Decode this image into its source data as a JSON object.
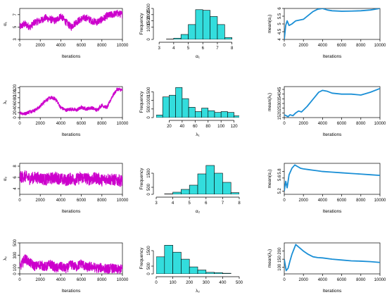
{
  "colors": {
    "trace": "#cc00cc",
    "hist_fill": "#33dddd",
    "hist_edge": "#000000",
    "mean_line": "#1a8fd6"
  },
  "chart_data": [
    {
      "panel": "trace-alpha1",
      "type": "line",
      "xlabel": "Iterations",
      "ylabel": "α₁",
      "xlim": [
        0,
        10000
      ],
      "ylim": [
        3,
        8
      ],
      "xticks": [
        0,
        2000,
        4000,
        6000,
        8000,
        10000
      ],
      "yticks": [
        3,
        5,
        7
      ],
      "x": [
        0,
        500,
        1000,
        1500,
        2000,
        2500,
        3000,
        3500,
        4000,
        4500,
        5000,
        5500,
        6000,
        6500,
        7000,
        7500,
        8000,
        8500,
        9000,
        9500,
        10000
      ],
      "y": [
        5.0,
        5.5,
        5.0,
        5.8,
        6.0,
        6.5,
        6.2,
        6.0,
        6.8,
        5.8,
        5.0,
        5.8,
        6.3,
        6.5,
        6.0,
        5.8,
        6.2,
        6.8,
        7.0,
        7.2,
        7.0
      ],
      "noise": 1.2
    },
    {
      "panel": "hist-alpha1",
      "type": "bar",
      "xlabel": "α₁",
      "ylabel": "Frequency",
      "xlim": [
        2.8,
        8.5
      ],
      "ylim": [
        0,
        2500
      ],
      "xticks": [
        3,
        4,
        5,
        6,
        7,
        8
      ],
      "yticks": [
        0,
        1000,
        1500,
        2000,
        2500
      ],
      "bin_edges": [
        3.5,
        4,
        4.5,
        5,
        5.5,
        6,
        6.5,
        7,
        7.5,
        8
      ],
      "values": [
        30,
        100,
        400,
        1200,
        2400,
        2350,
        1850,
        1200,
        150
      ]
    },
    {
      "panel": "mean-alpha1",
      "type": "line",
      "xlabel": "Iterations",
      "ylabel": "mean(α₁)",
      "xlim": [
        0,
        10000
      ],
      "ylim": [
        4.0,
        6.0
      ],
      "xticks": [
        0,
        2000,
        4000,
        6000,
        8000,
        10000
      ],
      "yticks": [
        4.0,
        4.5,
        5.0,
        5.5,
        6.0
      ],
      "x": [
        0,
        150,
        300,
        500,
        800,
        1200,
        1600,
        2000,
        2500,
        3000,
        3500,
        4000,
        4500,
        5000,
        6000,
        7000,
        8000,
        9000,
        10000
      ],
      "y": [
        4.0,
        4.9,
        5.2,
        4.9,
        5.0,
        5.2,
        5.25,
        5.3,
        5.55,
        5.8,
        5.95,
        6.0,
        5.9,
        5.85,
        5.82,
        5.83,
        5.85,
        5.9,
        6.0
      ]
    },
    {
      "panel": "trace-lambda1",
      "type": "line",
      "xlabel": "Iterations",
      "ylabel": "λ₁",
      "xlim": [
        0,
        10000
      ],
      "ylim": [
        0,
        125
      ],
      "xticks": [
        0,
        2000,
        4000,
        6000,
        8000,
        10000
      ],
      "yticks": [
        0,
        20,
        40,
        60,
        80,
        100,
        120
      ],
      "x": [
        0,
        500,
        1000,
        1500,
        2000,
        2500,
        3000,
        3500,
        4000,
        4500,
        5000,
        5500,
        6000,
        6500,
        7000,
        7500,
        8000,
        8500,
        9000,
        9500,
        10000
      ],
      "y": [
        20,
        15,
        25,
        30,
        45,
        70,
        80,
        75,
        40,
        30,
        35,
        30,
        40,
        35,
        40,
        30,
        50,
        40,
        85,
        115,
        110
      ],
      "noise": 15
    },
    {
      "panel": "hist-lambda1",
      "type": "bar",
      "xlabel": "λ₁",
      "ylabel": "Frequency",
      "xlim": [
        0,
        128
      ],
      "ylim": [
        0,
        1800
      ],
      "xticks": [
        20,
        40,
        60,
        80,
        100,
        120
      ],
      "yticks": [
        0,
        500,
        1000,
        1500
      ],
      "bin_edges": [
        0,
        10,
        20,
        30,
        40,
        50,
        60,
        70,
        80,
        90,
        100,
        110,
        120,
        130
      ],
      "values": [
        150,
        1200,
        1300,
        1750,
        1100,
        600,
        350,
        550,
        400,
        300,
        350,
        300,
        100
      ]
    },
    {
      "panel": "mean-lambda1",
      "type": "line",
      "xlabel": "Iterations",
      "ylabel": "mean(λ₁)",
      "xlim": [
        0,
        10000
      ],
      "ylim": [
        15,
        48
      ],
      "xticks": [
        0,
        2000,
        4000,
        6000,
        8000,
        10000
      ],
      "yticks": [
        15,
        20,
        25,
        30,
        35,
        40,
        45
      ],
      "x": [
        0,
        200,
        400,
        600,
        900,
        1200,
        1500,
        1800,
        2000,
        2400,
        2800,
        3200,
        3600,
        4000,
        4500,
        5000,
        6000,
        7000,
        8000,
        9000,
        10000
      ],
      "y": [
        18,
        17,
        16,
        18,
        17,
        20,
        22,
        21,
        23,
        27,
        32,
        37,
        42,
        44,
        43,
        41,
        40,
        40,
        39,
        42,
        46
      ]
    },
    {
      "panel": "trace-alpha2",
      "type": "line",
      "xlabel": "Iterations",
      "ylabel": "α₂",
      "xlim": [
        0,
        10000
      ],
      "ylim": [
        3,
        8.5
      ],
      "xticks": [
        0,
        2000,
        4000,
        6000,
        8000,
        10000
      ],
      "yticks": [
        4,
        6,
        8
      ],
      "x": [
        0,
        500,
        1000,
        1500,
        2000,
        2500,
        3000,
        3500,
        4000,
        4500,
        5000,
        5500,
        6000,
        6500,
        7000,
        7500,
        8000,
        8500,
        9000,
        9500,
        10000
      ],
      "y": [
        6.0,
        6.2,
        5.8,
        6.0,
        5.9,
        5.6,
        5.8,
        6.0,
        5.7,
        5.5,
        5.8,
        5.6,
        6.0,
        5.8,
        5.7,
        5.9,
        5.5,
        5.8,
        5.6,
        5.5,
        5.4
      ],
      "noise": 2.2
    },
    {
      "panel": "hist-alpha2",
      "type": "bar",
      "xlabel": "α₂",
      "ylabel": "Frequency",
      "xlim": [
        3,
        8
      ],
      "ylim": [
        0,
        2200
      ],
      "xticks": [
        3,
        4,
        5,
        6,
        7,
        8
      ],
      "yticks": [
        0,
        500,
        1500
      ],
      "bin_edges": [
        3.5,
        4,
        4.5,
        5,
        5.5,
        6,
        6.5,
        7,
        7.5,
        8
      ],
      "values": [
        30,
        150,
        350,
        650,
        1450,
        2050,
        1500,
        850,
        120
      ]
    },
    {
      "panel": "mean-alpha2",
      "type": "line",
      "xlabel": "Iterations",
      "ylabel": "mean(α₂)",
      "xlim": [
        0,
        10000
      ],
      "ylim": [
        5.1,
        6.05
      ],
      "xticks": [
        0,
        2000,
        4000,
        6000,
        8000,
        10000
      ],
      "yticks": [
        5.2,
        5.6,
        5.8
      ],
      "x": [
        0,
        150,
        300,
        500,
        800,
        1100,
        1400,
        1700,
        2000,
        2500,
        3000,
        3500,
        4000,
        5000,
        6000,
        7000,
        8000,
        9000,
        10000
      ],
      "y": [
        5.2,
        5.5,
        5.3,
        5.7,
        5.9,
        6.0,
        5.95,
        5.9,
        5.88,
        5.86,
        5.84,
        5.82,
        5.8,
        5.78,
        5.76,
        5.74,
        5.72,
        5.7,
        5.68
      ]
    },
    {
      "panel": "trace-lambda2",
      "type": "line",
      "xlabel": "Iterations",
      "ylabel": "λ₂",
      "xlim": [
        0,
        10000
      ],
      "ylim": [
        0,
        500
      ],
      "xticks": [
        0,
        2000,
        4000,
        6000,
        8000,
        10000
      ],
      "yticks": [
        0,
        100,
        300,
        500
      ],
      "x": [
        0,
        500,
        1000,
        1500,
        2000,
        2500,
        3000,
        3500,
        4000,
        4500,
        5000,
        5500,
        6000,
        6500,
        7000,
        7500,
        8000,
        8500,
        9000,
        9500,
        10000
      ],
      "y": [
        100,
        250,
        180,
        120,
        150,
        110,
        160,
        90,
        120,
        80,
        150,
        110,
        170,
        100,
        120,
        90,
        100,
        80,
        90,
        70,
        80
      ],
      "noise": 160
    },
    {
      "panel": "hist-lambda2",
      "type": "bar",
      "xlabel": "λ₂",
      "ylabel": "Frequency",
      "xlim": [
        0,
        500
      ],
      "ylim": [
        0,
        2000
      ],
      "xticks": [
        0,
        100,
        200,
        300,
        400,
        500
      ],
      "yticks": [
        0,
        500,
        1500
      ],
      "bin_edges": [
        0,
        50,
        100,
        150,
        200,
        250,
        300,
        350,
        400,
        450
      ],
      "values": [
        1100,
        1850,
        1400,
        950,
        450,
        250,
        100,
        80,
        40
      ]
    },
    {
      "panel": "mean-lambda2",
      "type": "line",
      "xlabel": "Iterations",
      "ylabel": "mean(λ₂)",
      "xlim": [
        0,
        10000
      ],
      "ylim": [
        60,
        250
      ],
      "xticks": [
        0,
        2000,
        4000,
        6000,
        8000,
        10000
      ],
      "yticks": [
        100,
        150,
        200
      ],
      "x": [
        0,
        200,
        400,
        600,
        800,
        1000,
        1200,
        1500,
        2000,
        2500,
        3000,
        3500,
        4000,
        5000,
        6000,
        7000,
        8000,
        9000,
        10000
      ],
      "y": [
        150,
        80,
        95,
        140,
        180,
        210,
        240,
        225,
        200,
        180,
        165,
        160,
        158,
        150,
        145,
        140,
        138,
        135,
        130
      ]
    }
  ]
}
